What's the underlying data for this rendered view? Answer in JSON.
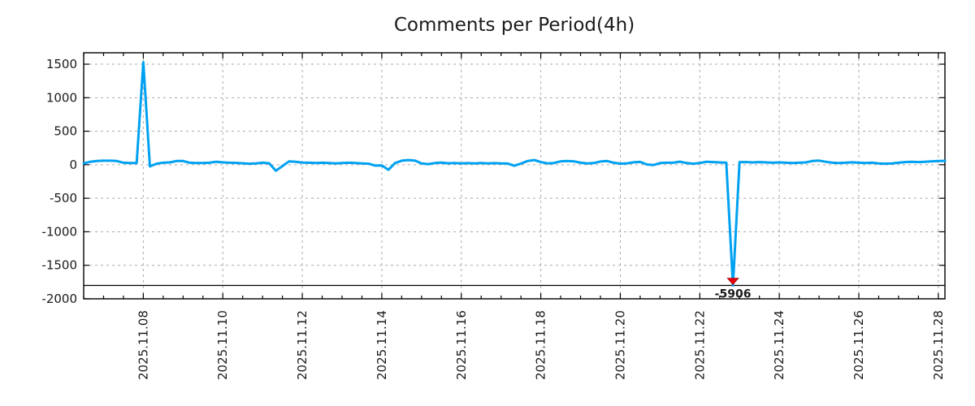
{
  "figure": {
    "title": "Comments per Period(4h)"
  },
  "chart_data": {
    "type": "line",
    "title": "Comments per Period(4h)",
    "x_start": "2025-11-06 12:00",
    "x_step_hours": 4,
    "x_tick_labels": [
      "2025.11.08",
      "2025.11.10",
      "2025.11.12",
      "2025.11.14",
      "2025.11.16",
      "2025.11.18",
      "2025.11.20",
      "2025.11.22",
      "2025.11.24",
      "2025.11.26",
      "2025.11.28"
    ],
    "x_tick_indices": [
      9,
      21,
      33,
      45,
      57,
      69,
      81,
      93,
      105,
      117,
      129
    ],
    "x_minor_per_major": 4,
    "y_ticks": [
      1500,
      1000,
      500,
      0,
      -500,
      -1000,
      -1500,
      -2000
    ],
    "ylim": [
      -2000,
      1670
    ],
    "grid": true,
    "legend": false,
    "series": [
      {
        "name": "comments-per-4h",
        "color": "#00a1f1",
        "values": [
          20,
          45,
          55,
          60,
          60,
          55,
          30,
          25,
          25,
          1530,
          -25,
          15,
          30,
          35,
          55,
          55,
          30,
          25,
          25,
          30,
          45,
          35,
          30,
          28,
          22,
          15,
          20,
          30,
          22,
          -90,
          -20,
          50,
          45,
          32,
          30,
          26,
          30,
          25,
          20,
          25,
          30,
          25,
          20,
          15,
          -12,
          -10,
          -75,
          25,
          60,
          70,
          62,
          20,
          10,
          25,
          32,
          22,
          26,
          20,
          24,
          20,
          25,
          20,
          24,
          20,
          18,
          -15,
          18,
          55,
          70,
          40,
          20,
          26,
          50,
          56,
          50,
          30,
          20,
          25,
          48,
          56,
          30,
          15,
          20,
          36,
          42,
          5,
          -5,
          25,
          30,
          30,
          46,
          25,
          15,
          25,
          45,
          40,
          35,
          30,
          -1800,
          40,
          40,
          35,
          40,
          35,
          30,
          35,
          30,
          25,
          30,
          35,
          55,
          62,
          45,
          30,
          25,
          30,
          36,
          30,
          25,
          30,
          20,
          15,
          20,
          30,
          40,
          45,
          40,
          45,
          50,
          55,
          58
        ]
      }
    ],
    "annotations": {
      "clip_line_value": -1800,
      "min_marker": {
        "index": 98,
        "value_label": "-5906",
        "clipped_at": -1800,
        "marker": "triangle-down",
        "marker_color": "#e8000d",
        "label_color": "#00a1f1"
      }
    },
    "colors": {
      "grid": "#aaaaaa",
      "axis": "#000000",
      "text": "#1a1a1a"
    }
  }
}
